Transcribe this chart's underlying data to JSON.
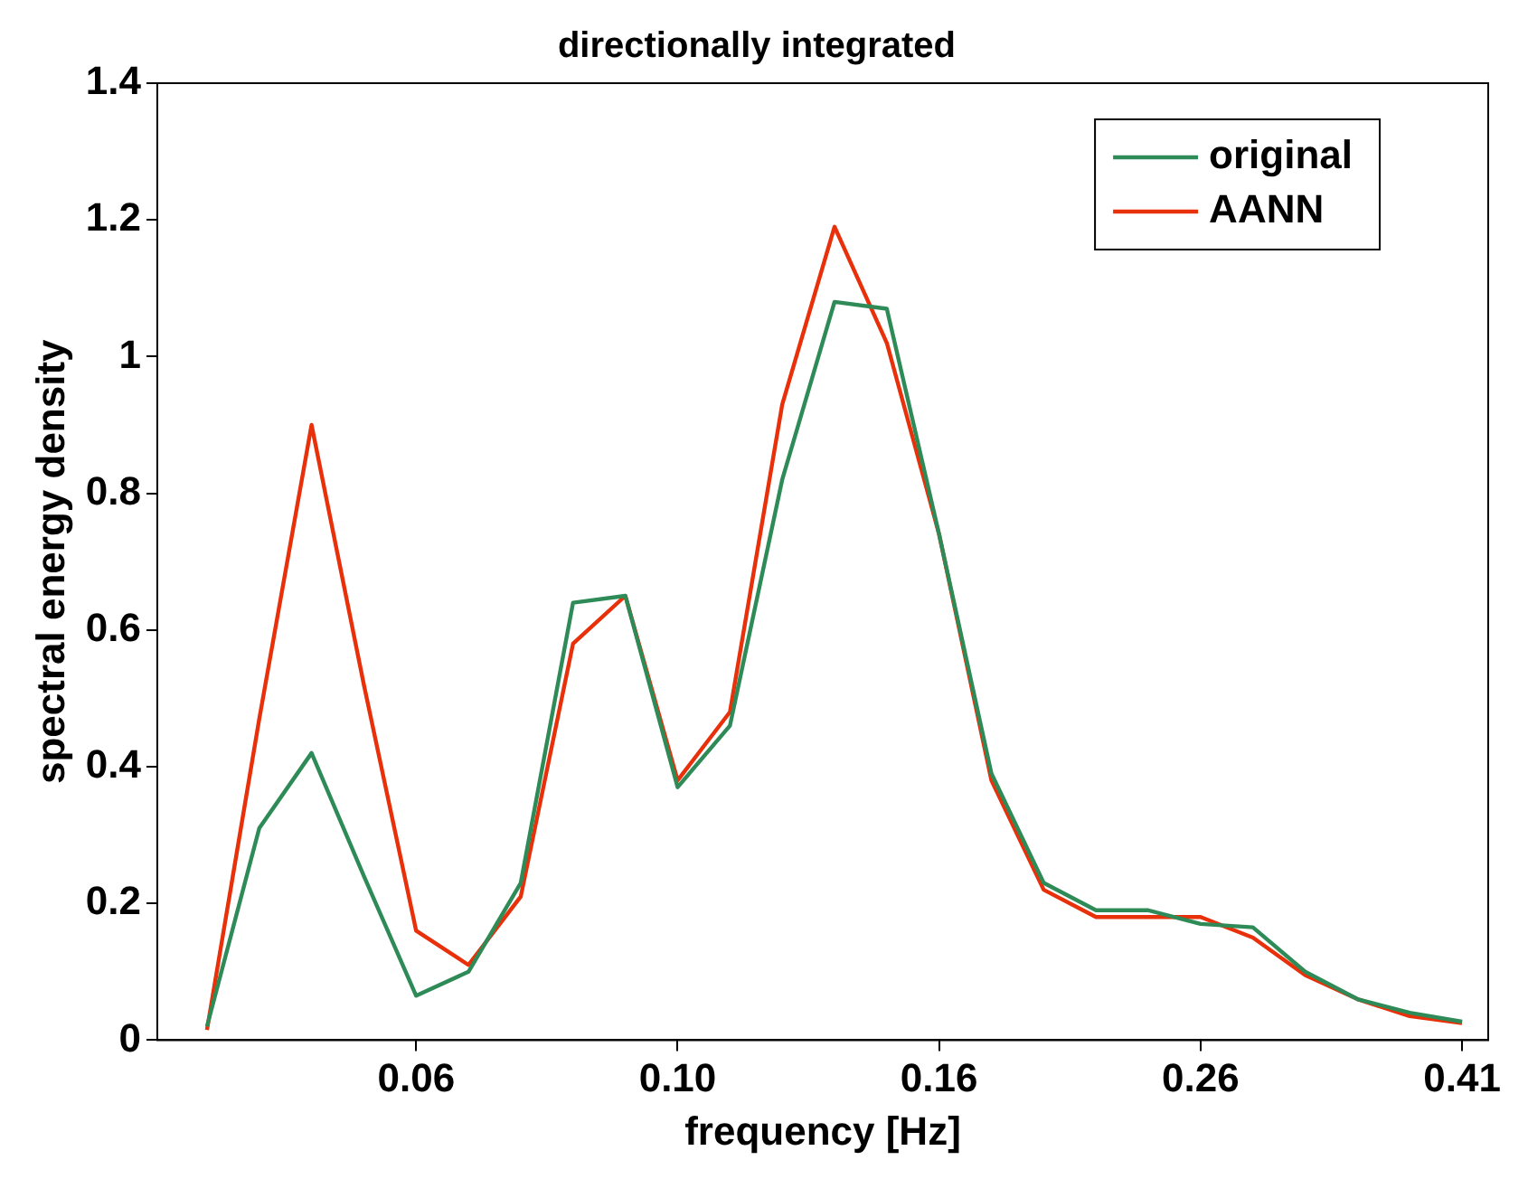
{
  "chart_data": {
    "type": "line",
    "title": "directionally integrated",
    "xlabel": "frequency [Hz]",
    "ylabel": "spectral energy density",
    "categories": [
      null,
      null,
      null,
      null,
      "0.06",
      null,
      null,
      null,
      null,
      "0.10",
      null,
      null,
      null,
      null,
      "0.16",
      null,
      null,
      null,
      null,
      "0.26",
      null,
      null,
      null,
      null,
      "0.41"
    ],
    "series": [
      {
        "name": "original",
        "color": "#2e8b57",
        "values": [
          0.02,
          0.31,
          0.42,
          0.24,
          0.065,
          0.1,
          0.23,
          0.64,
          0.65,
          0.37,
          0.46,
          0.82,
          1.08,
          1.07,
          0.74,
          0.39,
          0.23,
          0.19,
          0.19,
          0.17,
          0.165,
          0.1,
          0.06,
          0.04,
          0.027
        ]
      },
      {
        "name": "AANN",
        "color": "#e8300a",
        "values": [
          0.015,
          0.47,
          0.9,
          0.52,
          0.16,
          0.11,
          0.21,
          0.58,
          0.65,
          0.38,
          0.48,
          0.93,
          1.19,
          1.02,
          0.74,
          0.38,
          0.22,
          0.18,
          0.18,
          0.18,
          0.15,
          0.095,
          0.06,
          0.035,
          0.025
        ]
      }
    ],
    "ylim": [
      0,
      1.4
    ],
    "yticks": [
      0,
      0.2,
      0.4,
      0.6,
      0.8,
      1,
      1.2,
      1.4
    ],
    "grid": false,
    "legend": "top right",
    "marker": "none",
    "line_style": "solid"
  }
}
